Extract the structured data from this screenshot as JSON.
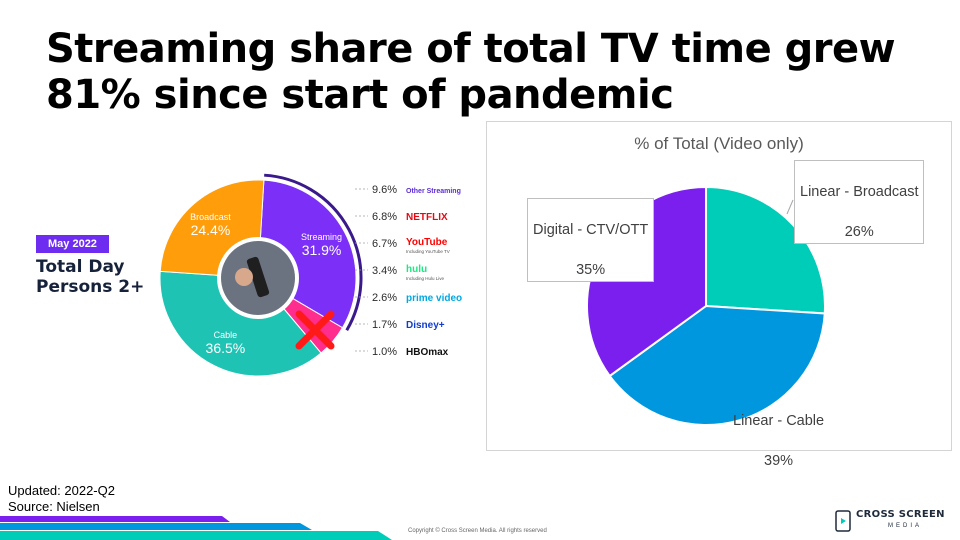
{
  "title": "Streaming share of total TV time grew 81% since start of pandemic",
  "footer": {
    "updated": "Updated: 2022-Q2",
    "source": "Source: Nielsen",
    "copyright": "Copyright © Cross Screen Media. All rights reserved"
  },
  "logo": {
    "name": "CROSS SCREEN",
    "sub": "MEDIA"
  },
  "colors": {
    "purple": "#7b1fee",
    "teal": "#00cdb8",
    "blue": "#0097df"
  },
  "chart_data": [
    {
      "type": "pie",
      "badge": "May 2022",
      "heading": "Total Day Persons 2+",
      "slices": [
        {
          "label": "Streaming",
          "value": 31.9,
          "display": "31.9%",
          "color": "#7b2ff7"
        },
        {
          "label": "",
          "value": 5.3,
          "display": "",
          "color": "#ff2d8e"
        },
        {
          "label": "Cable",
          "value": 36.5,
          "display": "36.5%",
          "color": "#1ec3b4"
        },
        {
          "label": "Broadcast",
          "value": 24.4,
          "display": "24.4%",
          "color": "#ff9d0a"
        }
      ],
      "streaming_breakdown": [
        {
          "value": "9.6%",
          "name": "Other Streaming",
          "sub": ""
        },
        {
          "value": "6.8%",
          "name": "NETFLIX",
          "sub": ""
        },
        {
          "value": "6.7%",
          "name": "YouTube",
          "sub": "Including YouTube TV"
        },
        {
          "value": "3.4%",
          "name": "hulu",
          "sub": "Including Hulu Live"
        },
        {
          "value": "2.6%",
          "name": "prime video",
          "sub": ""
        },
        {
          "value": "1.7%",
          "name": "Disney+",
          "sub": ""
        },
        {
          "value": "1.0%",
          "name": "HBOmax",
          "sub": ""
        }
      ]
    },
    {
      "type": "pie",
      "title": "% of Total (Video only)",
      "slices": [
        {
          "label": "Linear - Broadcast",
          "value": 26,
          "display": "26%",
          "color": "#00cdb8"
        },
        {
          "label": "Linear - Cable",
          "value": 39,
          "display": "39%",
          "color": "#0097df"
        },
        {
          "label": "Digital - CTV/OTT",
          "value": 35,
          "display": "35%",
          "color": "#7b1fee"
        }
      ]
    }
  ]
}
